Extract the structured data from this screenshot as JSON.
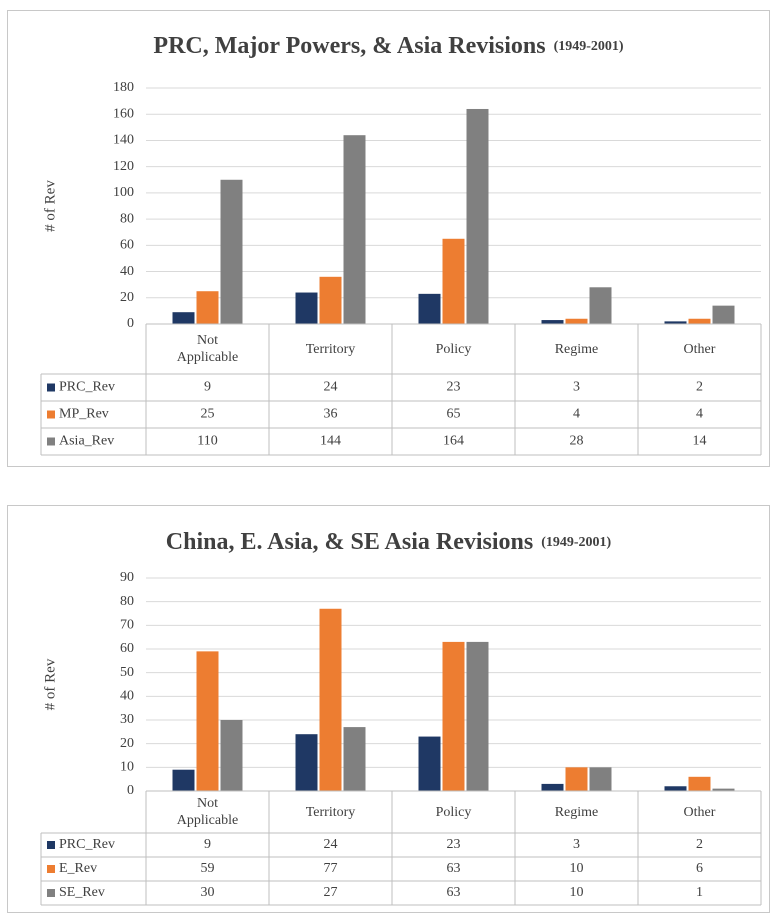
{
  "chart_data": [
    {
      "type": "bar",
      "title": "PRC, Major Powers, & Asia Revisions",
      "subtitle": "(1949-2001)",
      "y_label": "# of Rev",
      "categories": [
        "Not Applicable",
        "Territory",
        "Policy",
        "Regime",
        "Other"
      ],
      "series": [
        {
          "name": "PRC_Rev",
          "color": "#1f3864",
          "values": [
            9,
            24,
            23,
            3,
            2
          ]
        },
        {
          "name": "MP_Rev",
          "color": "#ed7d31",
          "values": [
            25,
            36,
            65,
            4,
            4
          ]
        },
        {
          "name": "Asia_Rev",
          "color": "#808080",
          "values": [
            110,
            144,
            164,
            28,
            14
          ]
        }
      ],
      "ylim": [
        0,
        180
      ],
      "yticks": [
        0,
        20,
        40,
        60,
        80,
        100,
        120,
        140,
        160,
        180
      ],
      "grid": true,
      "data_table": true
    },
    {
      "type": "bar",
      "title": "China, E. Asia, & SE Asia Revisions",
      "subtitle": "(1949-2001)",
      "y_label": "# of Rev",
      "categories": [
        "Not Applicable",
        "Territory",
        "Policy",
        "Regime",
        "Other"
      ],
      "series": [
        {
          "name": "PRC_Rev",
          "color": "#1f3864",
          "values": [
            9,
            24,
            23,
            3,
            2
          ]
        },
        {
          "name": "E_Rev",
          "color": "#ed7d31",
          "values": [
            59,
            77,
            63,
            10,
            6
          ]
        },
        {
          "name": "SE_Rev",
          "color": "#808080",
          "values": [
            30,
            27,
            63,
            10,
            1
          ]
        }
      ],
      "ylim": [
        0,
        90
      ],
      "yticks": [
        0,
        10,
        20,
        30,
        40,
        50,
        60,
        70,
        80,
        90
      ],
      "grid": true,
      "data_table": true
    }
  ]
}
